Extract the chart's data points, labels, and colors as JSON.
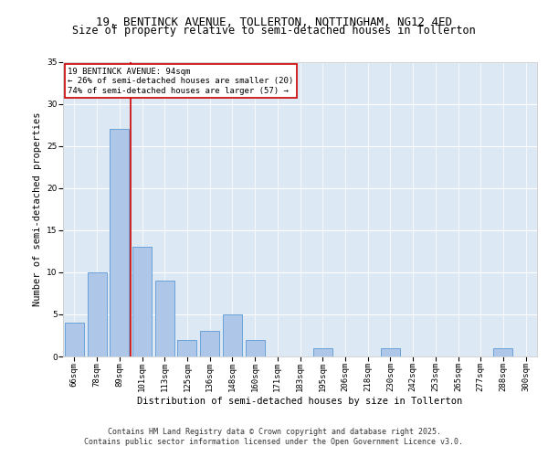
{
  "title_line1": "19, BENTINCK AVENUE, TOLLERTON, NOTTINGHAM, NG12 4ED",
  "title_line2": "Size of property relative to semi-detached houses in Tollerton",
  "xlabel": "Distribution of semi-detached houses by size in Tollerton",
  "ylabel": "Number of semi-detached properties",
  "categories": [
    "66sqm",
    "78sqm",
    "89sqm",
    "101sqm",
    "113sqm",
    "125sqm",
    "136sqm",
    "148sqm",
    "160sqm",
    "171sqm",
    "183sqm",
    "195sqm",
    "206sqm",
    "218sqm",
    "230sqm",
    "242sqm",
    "253sqm",
    "265sqm",
    "277sqm",
    "288sqm",
    "300sqm"
  ],
  "values": [
    4,
    10,
    27,
    13,
    9,
    2,
    3,
    5,
    2,
    0,
    0,
    1,
    0,
    0,
    1,
    0,
    0,
    0,
    0,
    1,
    0
  ],
  "bar_color": "#aec6e8",
  "bar_edge_color": "#5b9bd5",
  "vline_x_idx": 2,
  "vline_color": "#cc0000",
  "annotation_text": "19 BENTINCK AVENUE: 94sqm\n← 26% of semi-detached houses are smaller (20)\n74% of semi-detached houses are larger (57) →",
  "annotation_box_color": "#ffffff",
  "annotation_box_edge": "#cc0000",
  "ylim": [
    0,
    35
  ],
  "yticks": [
    0,
    5,
    10,
    15,
    20,
    25,
    30,
    35
  ],
  "background_color": "#dde8f5",
  "footer_text": "Contains HM Land Registry data © Crown copyright and database right 2025.\nContains public sector information licensed under the Open Government Licence v3.0.",
  "title_fontsize": 9,
  "subtitle_fontsize": 8.5,
  "axis_label_fontsize": 7.5,
  "tick_fontsize": 6.5,
  "annotation_fontsize": 6.5,
  "footer_fontsize": 6
}
